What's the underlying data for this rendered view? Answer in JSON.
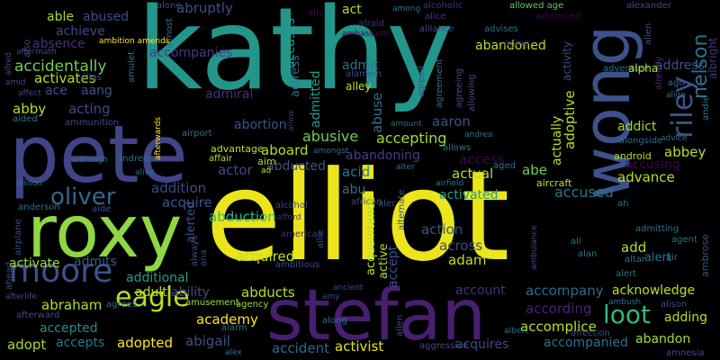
{
  "words": [
    {
      "text": "kathy",
      "color": "#23968b"
    },
    {
      "text": "elliot",
      "color": "#ece51b"
    },
    {
      "text": "pete",
      "color": "#414487"
    },
    {
      "text": "roxy",
      "color": "#8fd744"
    },
    {
      "text": "stefan",
      "color": "#481f70"
    },
    {
      "text": "wong",
      "color": "#3b528b"
    },
    {
      "text": "moore",
      "color": "#3b528b"
    },
    {
      "text": "eagle",
      "color": "#b5de2b"
    },
    {
      "text": "loot",
      "color": "#35b779"
    },
    {
      "text": "oliver",
      "color": "#31688e"
    },
    {
      "text": "riley",
      "color": "#3b528b"
    },
    {
      "text": "nelson",
      "color": "#2c728e"
    },
    {
      "text": "albright",
      "color": "#443983"
    },
    {
      "text": "abusive",
      "color": "#6ece58"
    },
    {
      "text": "accepting",
      "color": "#a0da39"
    },
    {
      "text": "accompanies",
      "color": "#443983"
    },
    {
      "text": "accidentally",
      "color": "#6ece58"
    },
    {
      "text": "activates",
      "color": "#b5de2b"
    },
    {
      "text": "activate",
      "color": "#a0da39"
    },
    {
      "text": "admits",
      "color": "#38598c"
    },
    {
      "text": "additional",
      "color": "#1f9e89"
    },
    {
      "text": "abraham",
      "color": "#b5de2b"
    },
    {
      "text": "academy",
      "color": "#fde725"
    },
    {
      "text": "adopted",
      "color": "#fde725"
    },
    {
      "text": "adopt",
      "color": "#a0da39"
    },
    {
      "text": "accepts",
      "color": "#2a788e"
    },
    {
      "text": "accepted",
      "color": "#21918c"
    },
    {
      "text": "abigail",
      "color": "#3b528b"
    },
    {
      "text": "accident",
      "color": "#31688e"
    },
    {
      "text": "activist",
      "color": "#e2e418"
    },
    {
      "text": "acquires",
      "color": "#3e4a89"
    },
    {
      "text": "accompanied",
      "color": "#2c728e"
    },
    {
      "text": "abandon",
      "color": "#a0da39"
    },
    {
      "text": "accomplice",
      "color": "#bddf26"
    },
    {
      "text": "according",
      "color": "#482475"
    },
    {
      "text": "accompany",
      "color": "#31688e"
    },
    {
      "text": "account",
      "color": "#46307e"
    },
    {
      "text": "acknowledge",
      "color": "#bddf26"
    },
    {
      "text": "adding",
      "color": "#b5de2b"
    },
    {
      "text": "abducts",
      "color": "#b5de2b"
    },
    {
      "text": "ability",
      "color": "#3e4a89"
    },
    {
      "text": "adam",
      "color": "#bddf26"
    },
    {
      "text": "across",
      "color": "#3e4a89"
    },
    {
      "text": "action",
      "color": "#3b528b"
    },
    {
      "text": "acquired",
      "color": "#bddf26"
    },
    {
      "text": "add",
      "color": "#b5de2b"
    },
    {
      "text": "accused",
      "color": "#2c728e"
    },
    {
      "text": "advance",
      "color": "#b5de2b"
    },
    {
      "text": "accusing",
      "color": "#440154"
    },
    {
      "text": "abbey",
      "color": "#b5de2b"
    },
    {
      "text": "addict",
      "color": "#a0da39"
    },
    {
      "text": "address",
      "color": "#3b528b"
    },
    {
      "text": "abduction",
      "color": "#35b779"
    },
    {
      "text": "addition",
      "color": "#3e4a89"
    },
    {
      "text": "acquire",
      "color": "#3b528b"
    },
    {
      "text": "abducted",
      "color": "#3b528b"
    },
    {
      "text": "abandoning",
      "color": "#433e85"
    },
    {
      "text": "actor",
      "color": "#3e4a89"
    },
    {
      "text": "aboard",
      "color": "#b5de2b"
    },
    {
      "text": "abortion",
      "color": "#3b528b"
    },
    {
      "text": "access",
      "color": "#440154"
    },
    {
      "text": "actual",
      "color": "#b5de2b"
    },
    {
      "text": "abe",
      "color": "#6ece58"
    },
    {
      "text": "acid",
      "color": "#287c8e"
    },
    {
      "text": "abu",
      "color": "#2c728e"
    },
    {
      "text": "activated",
      "color": "#1fa088"
    },
    {
      "text": "aaron",
      "color": "#3b528b"
    },
    {
      "text": "admiral",
      "color": "#46307e"
    },
    {
      "text": "admit",
      "color": "#2c728e"
    },
    {
      "text": "acting",
      "color": "#3e4a89"
    },
    {
      "text": "aang",
      "color": "#3b528b"
    },
    {
      "text": "abby",
      "color": "#b5de2b"
    },
    {
      "text": "ace",
      "color": "#3b528b"
    },
    {
      "text": "act",
      "color": "#b5de2b"
    },
    {
      "text": "able",
      "color": "#a0da39"
    },
    {
      "text": "abused",
      "color": "#3e4a89"
    },
    {
      "text": "absence",
      "color": "#46307e"
    },
    {
      "text": "achieve",
      "color": "#3e4a89"
    },
    {
      "text": "abandoned",
      "color": "#b5de2b"
    },
    {
      "text": "abruptly",
      "color": "#3b528b"
    },
    {
      "text": "allowed age",
      "color": "#5ec962"
    },
    {
      "text": "alexander",
      "color": "#3e4a89"
    },
    {
      "text": "alliance",
      "color": "#3e4a89"
    },
    {
      "text": "alone",
      "color": "#3e4a89"
    },
    {
      "text": "alcoholic",
      "color": "#46307e"
    },
    {
      "text": "alice",
      "color": "#46307e"
    },
    {
      "text": "among",
      "color": "#2c728e"
    },
    {
      "text": "ally",
      "color": "#440154"
    },
    {
      "text": "actress",
      "color": "#2c728e"
    },
    {
      "text": "accuses",
      "color": "#1f9e89"
    },
    {
      "text": "admitted",
      "color": "#1f9e89"
    },
    {
      "text": "abuse",
      "color": "#2c728e"
    },
    {
      "text": "alley",
      "color": "#bddf26"
    },
    {
      "text": "alamein",
      "color": "#3e4a89"
    },
    {
      "text": "afraid",
      "color": "#46307e"
    },
    {
      "text": "ambassador",
      "color": "#440154"
    },
    {
      "text": "advises",
      "color": "#2c728e"
    },
    {
      "text": "aging",
      "color": "#46307e"
    },
    {
      "text": "agreed",
      "color": "#3b528b"
    },
    {
      "text": "agreement",
      "color": "#2c728e"
    },
    {
      "text": "agreeing",
      "color": "#3e4a89"
    },
    {
      "text": "allowing",
      "color": "#3e4a89"
    },
    {
      "text": "allows",
      "color": "#2c728e"
    },
    {
      "text": "andrea",
      "color": "#2c728e"
    },
    {
      "text": "amount",
      "color": "#2c728e"
    },
    {
      "text": "alert",
      "color": "#2c728e"
    },
    {
      "text": "alter",
      "color": "#2c728e"
    },
    {
      "text": "aged",
      "color": "#2c728e"
    },
    {
      "text": "airfield",
      "color": "#2c728e"
    },
    {
      "text": "aircraft",
      "color": "#bddf26"
    },
    {
      "text": "african",
      "color": "#3e4a89"
    },
    {
      "text": "alec",
      "color": "#3b528b"
    },
    {
      "text": "alternate",
      "color": "#3b528b"
    },
    {
      "text": "accept",
      "color": "#3b528b"
    },
    {
      "text": "acquaintance",
      "color": "#3b528b"
    },
    {
      "text": "active",
      "color": "#b5de2b"
    },
    {
      "text": "actually",
      "color": "#b5de2b"
    },
    {
      "text": "adoptive",
      "color": "#b5de2b"
    },
    {
      "text": "activity",
      "color": "#b5de2b"
    },
    {
      "text": "advanced",
      "color": "#3e4a89"
    },
    {
      "text": "alien",
      "color": "#440154"
    },
    {
      "text": "already",
      "color": "#3b528b"
    },
    {
      "text": "adventure",
      "color": "#46307e"
    },
    {
      "text": "alpha",
      "color": "#2c728e"
    },
    {
      "text": "ago",
      "color": "#b5de2b"
    },
    {
      "text": "align",
      "color": "#2c728e"
    },
    {
      "text": "andie",
      "color": "#2c728e"
    },
    {
      "text": "alongside",
      "color": "#2c728e"
    },
    {
      "text": "advice",
      "color": "#2c728e"
    },
    {
      "text": "android",
      "color": "#2c728e"
    },
    {
      "text": "ah",
      "color": "#b5de2b"
    },
    {
      "text": "ambrose",
      "color": "#2c728e"
    },
    {
      "text": "admitting",
      "color": "#3b528b"
    },
    {
      "text": "ali",
      "color": "#2c728e"
    },
    {
      "text": "agent",
      "color": "#2c728e"
    },
    {
      "text": "alan",
      "color": "#2c728e"
    },
    {
      "text": "altar",
      "color": "#2c728e"
    },
    {
      "text": "air",
      "color": "#2c728e"
    },
    {
      "text": "alert",
      "color": "#2c728e"
    },
    {
      "text": "alison",
      "color": "#2c728e"
    },
    {
      "text": "ambush",
      "color": "#3e4a89"
    },
    {
      "text": "amnesia",
      "color": "#2c728e"
    },
    {
      "text": "affection",
      "color": "#3e4a89"
    },
    {
      "text": "albert",
      "color": "#3e4a89"
    },
    {
      "text": "ambulance",
      "color": "#2c728e"
    },
    {
      "text": "aggressive",
      "color": "#3e4a89"
    },
    {
      "text": "allen",
      "color": "#3e4a89"
    },
    {
      "text": "along",
      "color": "#3e4a89"
    },
    {
      "text": "amy",
      "color": "#2c728e"
    },
    {
      "text": "ancient",
      "color": "#3e4a89"
    },
    {
      "text": "alarm",
      "color": "#3e4a89"
    },
    {
      "text": "agency",
      "color": "#2c728e"
    },
    {
      "text": "alex",
      "color": "#a0da39"
    },
    {
      "text": "amusement",
      "color": "#2c728e"
    },
    {
      "text": "agrees",
      "color": "#a0da39"
    },
    {
      "text": "afterward",
      "color": "#2c728e"
    },
    {
      "text": "afterlife",
      "color": "#3e4a89"
    },
    {
      "text": "always",
      "color": "#3e4a89"
    },
    {
      "text": "ana",
      "color": "#3e4a89"
    },
    {
      "text": "ahead",
      "color": "#3e4a89"
    },
    {
      "text": "airplane",
      "color": "#3e4a89"
    },
    {
      "text": "anderson",
      "color": "#3e4a89"
    },
    {
      "text": "aide",
      "color": "#2c728e"
    },
    {
      "text": "allison",
      "color": "#3e4a89"
    },
    {
      "text": "although",
      "color": "#2c728e"
    },
    {
      "text": "andrew",
      "color": "#2c728e"
    },
    {
      "text": "alive",
      "color": "#2c728e"
    },
    {
      "text": "afterwards",
      "color": "#2c728e"
    },
    {
      "text": "ammunition",
      "color": "#fde725"
    },
    {
      "text": "aided",
      "color": "#3e4a89"
    },
    {
      "text": "affect",
      "color": "#2c728e"
    },
    {
      "text": "amid",
      "color": "#3e4a89"
    },
    {
      "text": "alfred",
      "color": "#3e4a89"
    },
    {
      "text": "aftermath",
      "color": "#3e4a89"
    },
    {
      "text": "ambition amends",
      "color": "#3e4a89"
    },
    {
      "text": "amulet",
      "color": "#fde725"
    },
    {
      "text": "alias",
      "color": "#2c728e"
    },
    {
      "text": "almost",
      "color": "#3e4a89"
    },
    {
      "text": "also",
      "color": "#2c728e"
    },
    {
      "text": "airport",
      "color": "#3e4a89"
    },
    {
      "text": "advantage",
      "color": "#2c728e"
    },
    {
      "text": "affair",
      "color": "#bddf26"
    },
    {
      "text": "aim",
      "color": "#b5de2b"
    },
    {
      "text": "ad",
      "color": "#b5de2b"
    },
    {
      "text": "amongst",
      "color": "#b5de2b"
    },
    {
      "text": "allow",
      "color": "#2c728e"
    },
    {
      "text": "alcohol",
      "color": "#46307e"
    },
    {
      "text": "afford",
      "color": "#3e4a89"
    },
    {
      "text": "american",
      "color": "#46307e"
    },
    {
      "text": "allie",
      "color": "#46307e"
    },
    {
      "text": "ambitious",
      "color": "#3e4a89"
    },
    {
      "text": "alerted",
      "color": "#3e4a89"
    },
    {
      "text": "adult",
      "color": "#3b528b"
    },
    {
      "text": "ad",
      "color": "#b5de2b"
    }
  ]
}
